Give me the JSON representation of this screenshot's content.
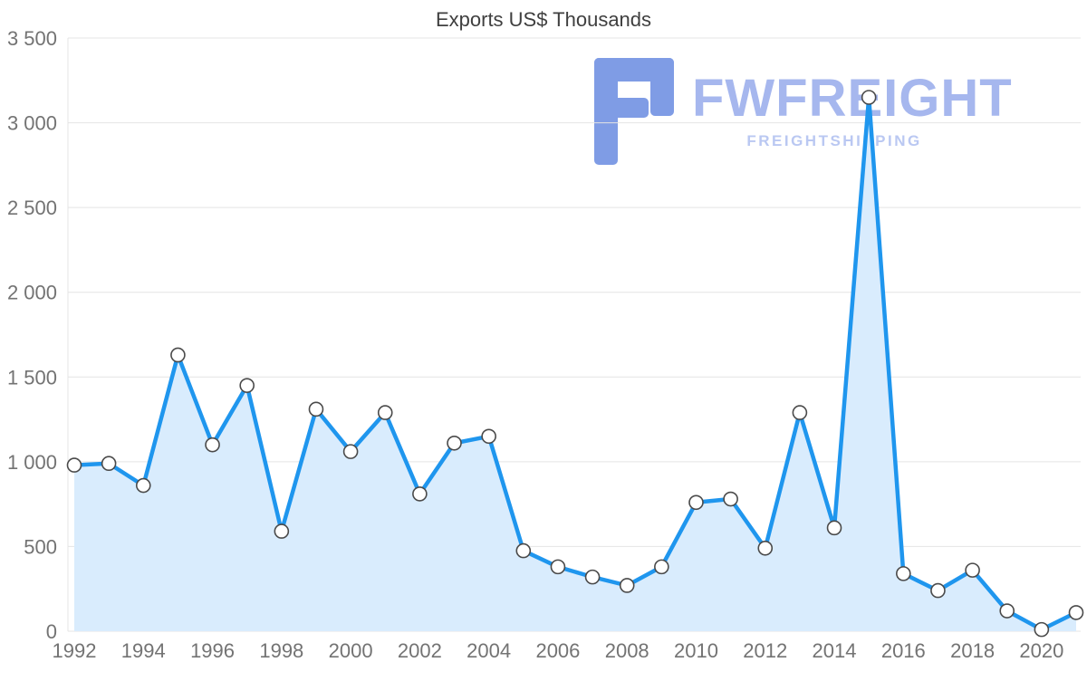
{
  "watermark": {
    "brand": "FWFREIGHT",
    "subtitle": "FREIGHTSHIPPING",
    "icon_color": "#7f9ce5",
    "brand_color": "#a6b7ee",
    "subtitle_color": "#bac8f2"
  },
  "chart_data": {
    "type": "area",
    "title": "Exports US$ Thousands",
    "series_name": "Exports US$ Thousands",
    "x": [
      1992,
      1993,
      1994,
      1995,
      1996,
      1997,
      1998,
      1999,
      2000,
      2001,
      2002,
      2003,
      2004,
      2005,
      2006,
      2007,
      2008,
      2009,
      2010,
      2011,
      2012,
      2013,
      2014,
      2015,
      2016,
      2017,
      2018,
      2019,
      2020,
      2021
    ],
    "values": [
      980,
      990,
      860,
      1630,
      1100,
      1450,
      590,
      1310,
      1060,
      1290,
      810,
      1110,
      1150,
      475,
      380,
      320,
      270,
      380,
      760,
      780,
      490,
      1290,
      610,
      3150,
      340,
      240,
      360,
      120,
      10,
      110
    ],
    "ylim": [
      0,
      3500
    ],
    "yticks": [
      0,
      500,
      1000,
      1500,
      2000,
      2500,
      3000,
      3500
    ],
    "ytick_labels": [
      "0",
      "500",
      "1 000",
      "1 500",
      "2 000",
      "2 500",
      "3 000",
      "3 500"
    ],
    "xticks": [
      1992,
      1994,
      1996,
      1998,
      2000,
      2002,
      2004,
      2006,
      2008,
      2010,
      2012,
      2014,
      2016,
      2018,
      2020
    ],
    "xtick_labels": [
      "1992",
      "1994",
      "1996",
      "1998",
      "2000",
      "2002",
      "2004",
      "2006",
      "2008",
      "2010",
      "2012",
      "2014",
      "2016",
      "2018",
      "2020"
    ],
    "grid": true,
    "legend": false,
    "colors": {
      "line": "#1f96ee",
      "fill": "#d9ecfd",
      "marker_fill": "#ffffff",
      "marker_stroke": "#4a4a4a",
      "grid": "#e4e4e4",
      "axis_text": "#737373",
      "title_text": "#3f3f3f"
    }
  }
}
